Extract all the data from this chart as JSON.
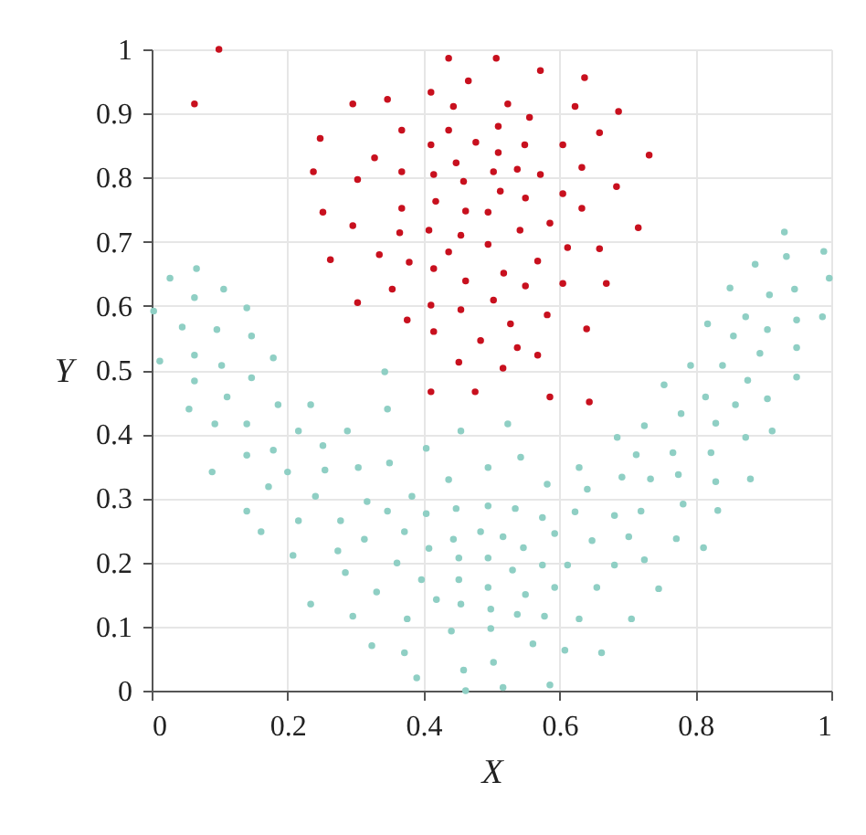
{
  "chart_data": {
    "type": "scatter",
    "xlabel": "X",
    "ylabel": "Y",
    "xlim": [
      0,
      1
    ],
    "ylim": [
      0,
      1
    ],
    "xticks": [
      0,
      0.2,
      0.4,
      0.6,
      0.8,
      1
    ],
    "yticks": [
      0,
      0.1,
      0.2,
      0.3,
      0.4,
      0.5,
      0.6,
      0.7,
      0.8,
      0.9,
      1
    ],
    "grid": true,
    "legend": false,
    "marker": "circle",
    "series": [
      {
        "color": "#c8101e",
        "x": [
          0.099,
          0.063,
          0.296,
          0.347,
          0.411,
          0.437,
          0.466,
          0.444,
          0.248,
          0.368,
          0.437,
          0.411,
          0.477,
          0.328,
          0.448,
          0.238,
          0.303,
          0.368,
          0.415,
          0.459,
          0.252,
          0.368,
          0.418,
          0.462,
          0.296,
          0.365,
          0.408,
          0.455,
          0.263,
          0.335,
          0.379,
          0.415,
          0.437,
          0.462,
          0.354,
          0.303,
          0.411,
          0.455,
          0.376,
          0.415,
          0.484,
          0.452,
          0.507,
          0.572,
          0.637,
          0.524,
          0.623,
          0.687,
          0.556,
          0.51,
          0.659,
          0.549,
          0.605,
          0.51,
          0.732,
          0.633,
          0.538,
          0.503,
          0.572,
          0.513,
          0.55,
          0.605,
          0.684,
          0.495,
          0.633,
          0.586,
          0.542,
          0.716,
          0.495,
          0.612,
          0.659,
          0.568,
          0.518,
          0.55,
          0.605,
          0.669,
          0.503,
          0.582,
          0.528,
          0.64,
          0.538,
          0.568,
          0.517,
          0.476,
          0.586,
          0.644,
          0.411
        ],
        "values": [
          1.0,
          0.915,
          0.915,
          0.922,
          0.933,
          0.986,
          0.951,
          0.911,
          0.861,
          0.874,
          0.874,
          0.851,
          0.855,
          0.831,
          0.823,
          0.809,
          0.797,
          0.809,
          0.805,
          0.794,
          0.746,
          0.752,
          0.763,
          0.748,
          0.725,
          0.714,
          0.718,
          0.71,
          0.672,
          0.68,
          0.668,
          0.658,
          0.684,
          0.639,
          0.626,
          0.605,
          0.601,
          0.594,
          0.578,
          0.56,
          0.546,
          0.512,
          0.986,
          0.967,
          0.956,
          0.915,
          0.911,
          0.903,
          0.894,
          0.88,
          0.87,
          0.851,
          0.851,
          0.839,
          0.835,
          0.816,
          0.813,
          0.809,
          0.805,
          0.779,
          0.768,
          0.775,
          0.786,
          0.746,
          0.752,
          0.729,
          0.718,
          0.722,
          0.696,
          0.691,
          0.689,
          0.67,
          0.651,
          0.631,
          0.635,
          0.635,
          0.609,
          0.586,
          0.572,
          0.564,
          0.535,
          0.523,
          0.503,
          0.466,
          0.458,
          0.45,
          0.466
        ]
      },
      {
        "color": "#8fcfc4",
        "x": [
          0.066,
          0.027,
          0.106,
          0.063,
          0.14,
          0.003,
          0.045,
          0.096,
          0.147,
          0.012,
          0.063,
          0.103,
          0.179,
          0.147,
          0.063,
          0.343,
          0.111,
          0.055,
          0.186,
          0.234,
          0.347,
          0.093,
          0.14,
          0.216,
          0.288,
          0.455,
          0.252,
          0.404,
          0.179,
          0.14,
          0.35,
          0.304,
          0.495,
          0.089,
          0.2,
          0.255,
          0.437,
          0.172,
          0.241,
          0.383,
          0.317,
          0.495,
          0.14,
          0.347,
          0.404,
          0.448,
          0.216,
          0.278,
          0.161,
          0.372,
          0.484,
          0.313,
          0.444,
          0.274,
          0.408,
          0.208,
          0.452,
          0.361,
          0.495,
          0.285,
          0.397,
          0.452,
          0.495,
          0.331,
          0.419,
          0.455,
          0.234,
          0.499,
          0.296,
          0.376,
          0.441,
          0.499,
          0.324,
          0.372,
          0.459,
          0.39,
          0.462,
          0.503,
          0.524,
          0.543,
          0.582,
          0.535,
          0.575,
          0.517,
          0.593,
          0.547,
          0.531,
          0.575,
          0.612,
          0.593,
          0.55,
          0.538,
          0.578,
          0.561,
          0.608,
          0.586,
          0.517,
          0.662,
          0.629,
          0.706,
          0.655,
          0.746,
          0.681,
          0.725,
          0.648,
          0.702,
          0.772,
          0.812,
          0.623,
          0.681,
          0.72,
          0.782,
          0.833,
          0.641,
          0.629,
          0.692,
          0.734,
          0.775,
          0.83,
          0.881,
          0.713,
          0.767,
          0.823,
          0.685,
          0.725,
          0.779,
          0.83,
          0.874,
          0.913,
          0.754,
          0.815,
          0.859,
          0.906,
          0.877,
          0.949,
          0.931,
          0.934,
          0.989,
          0.888,
          0.997,
          0.851,
          0.909,
          0.946,
          0.874,
          0.818,
          0.906,
          0.949,
          0.987,
          0.856,
          0.895,
          0.949,
          0.793,
          0.84
        ],
        "values": [
          0.658,
          0.643,
          0.626,
          0.613,
          0.597,
          0.592,
          0.567,
          0.563,
          0.553,
          0.514,
          0.523,
          0.507,
          0.519,
          0.488,
          0.483,
          0.497,
          0.458,
          0.439,
          0.446,
          0.446,
          0.439,
          0.416,
          0.416,
          0.405,
          0.405,
          0.405,
          0.382,
          0.378,
          0.375,
          0.367,
          0.355,
          0.348,
          0.348,
          0.341,
          0.341,
          0.344,
          0.329,
          0.318,
          0.303,
          0.303,
          0.295,
          0.288,
          0.28,
          0.28,
          0.276,
          0.284,
          0.265,
          0.265,
          0.248,
          0.248,
          0.248,
          0.236,
          0.236,
          0.218,
          0.222,
          0.211,
          0.207,
          0.199,
          0.207,
          0.184,
          0.173,
          0.173,
          0.161,
          0.154,
          0.142,
          0.135,
          0.135,
          0.127,
          0.116,
          0.112,
          0.093,
          0.097,
          0.07,
          0.059,
          0.032,
          0.02,
          0.0,
          0.044,
          0.416,
          0.364,
          0.322,
          0.284,
          0.27,
          0.24,
          0.245,
          0.223,
          0.188,
          0.196,
          0.196,
          0.161,
          0.15,
          0.119,
          0.116,
          0.073,
          0.063,
          0.009,
          0.005,
          0.059,
          0.112,
          0.112,
          0.161,
          0.159,
          0.196,
          0.204,
          0.234,
          0.24,
          0.237,
          0.223,
          0.279,
          0.273,
          0.28,
          0.291,
          0.281,
          0.314,
          0.348,
          0.333,
          0.33,
          0.337,
          0.326,
          0.33,
          0.368,
          0.371,
          0.371,
          0.395,
          0.413,
          0.432,
          0.417,
          0.395,
          0.405,
          0.477,
          0.458,
          0.446,
          0.455,
          0.484,
          0.489,
          0.715,
          0.677,
          0.685,
          0.665,
          0.643,
          0.628,
          0.617,
          0.626,
          0.583,
          0.572,
          0.563,
          0.578,
          0.583,
          0.553,
          0.526,
          0.535,
          0.507,
          0.507
        ]
      }
    ]
  }
}
